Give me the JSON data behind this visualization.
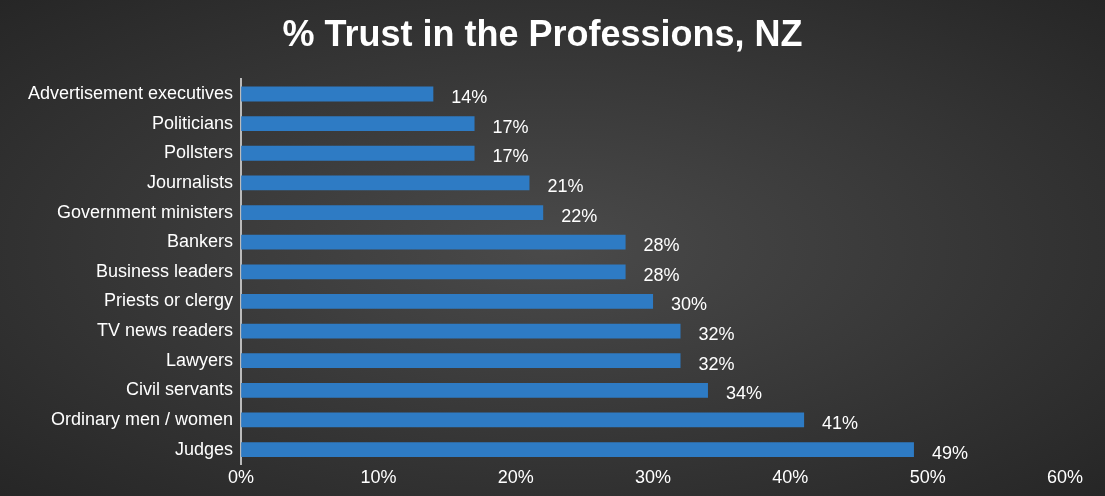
{
  "chart_data": {
    "type": "bar",
    "orientation": "horizontal",
    "title": "% Trust in the Professions, NZ",
    "categories": [
      "Advertisement executives",
      "Politicians",
      "Pollsters",
      "Journalists",
      "Government ministers",
      "Bankers",
      "Business leaders",
      "Priests or clergy",
      "TV news readers",
      "Lawyers",
      "Civil servants",
      "Ordinary men / women",
      "Judges"
    ],
    "values": [
      14,
      17,
      17,
      21,
      22,
      28,
      28,
      30,
      32,
      32,
      34,
      41,
      49
    ],
    "color": "#2e7bc4",
    "value_labels": [
      "14%",
      "17%",
      "17%",
      "21%",
      "22%",
      "28%",
      "28%",
      "30%",
      "32%",
      "32%",
      "34%",
      "41%",
      "49%"
    ],
    "xlim": [
      0,
      60
    ],
    "xticks": [
      {
        "value": 0,
        "label": "0%"
      },
      {
        "value": 10,
        "label": "10%"
      },
      {
        "value": 20,
        "label": "20%"
      },
      {
        "value": 30,
        "label": "30%"
      },
      {
        "value": 40,
        "label": "40%"
      },
      {
        "value": 50,
        "label": "50%"
      },
      {
        "value": 60,
        "label": "60%"
      }
    ],
    "grid": false,
    "legend": false
  }
}
